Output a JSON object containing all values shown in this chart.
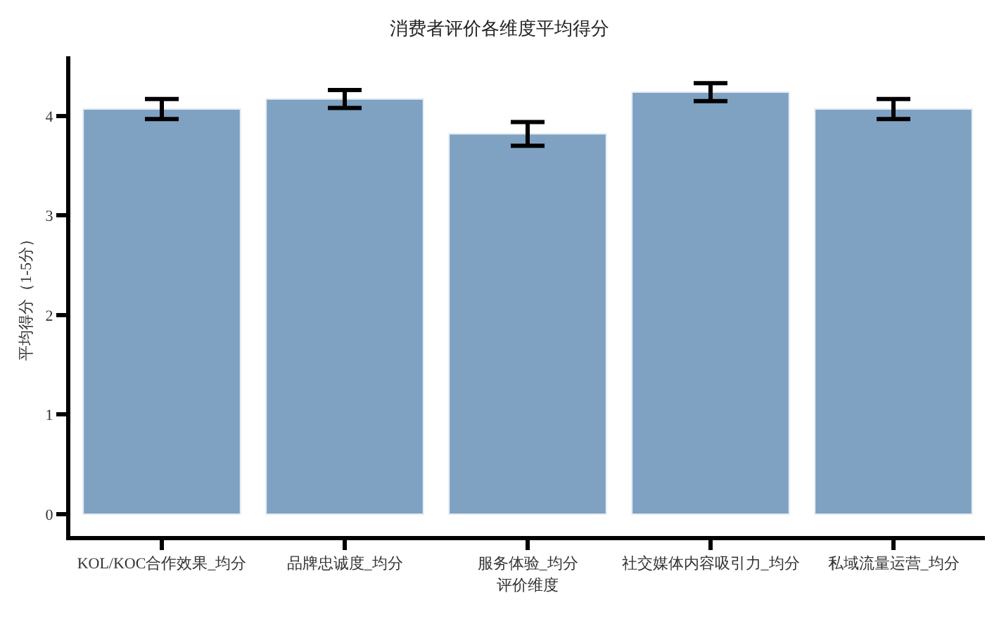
{
  "chart_data": {
    "type": "bar",
    "title": "消费者评价各维度平均得分",
    "xlabel": "评价维度",
    "ylabel": "平均得分（1-5分）",
    "categories": [
      "KOL/KOC合作效果_均分",
      "品牌忠诚度_均分",
      "服务体验_均分",
      "社交媒体内容吸引力_均分",
      "私域流量运营_均分"
    ],
    "values": [
      4.07,
      4.17,
      3.82,
      4.24,
      4.07
    ],
    "errors": [
      0.1,
      0.09,
      0.12,
      0.09,
      0.1
    ],
    "color": "#7fa1c2",
    "ylim": [
      -0.22,
      4.6
    ],
    "yticks": [
      0,
      1,
      2,
      3,
      4
    ],
    "grid": false
  }
}
